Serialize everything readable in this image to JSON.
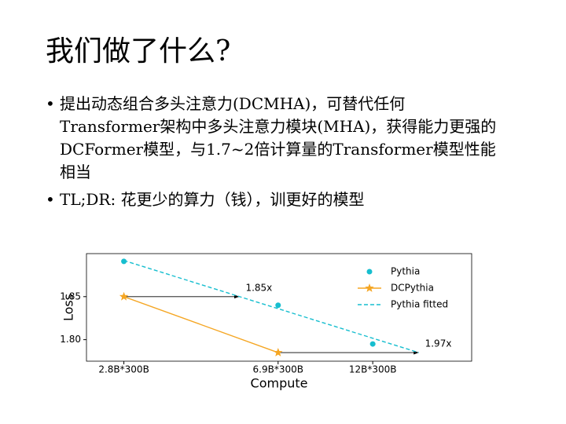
{
  "title": "我们做了什么?",
  "bullets": [
    "提出动态组合多头注意力(DCMHA)，可替代任何Transformer架构中多头注意力模块(MHA)，获得能力更强的DCFormer模型，与1.7~2倍计算量的Transformer模型性能相当",
    "TL;DR: 花更少的算力（钱），训更好的模型"
  ],
  "chart_data": {
    "type": "line",
    "x_label": "Compute",
    "y_label": "Loss",
    "xscale": "log",
    "xlim": [
      2.25,
      21.4
    ],
    "ylim": [
      1.775,
      1.9
    ],
    "xticks": [
      {
        "value": 2.8,
        "label": "2.8B*300B"
      },
      {
        "value": 6.9,
        "label": "6.9B*300B"
      },
      {
        "value": 12,
        "label": "12B*300B"
      }
    ],
    "yticks": [
      {
        "value": 1.8,
        "label": "1.80"
      },
      1.85
    ],
    "series": [
      {
        "name": "Pythia",
        "color": "#17becf",
        "marker": "circle",
        "linestyle": "none",
        "x": [
          2.8,
          6.9,
          12
        ],
        "values": [
          1.891,
          1.84,
          1.795
        ]
      },
      {
        "name": "DCPythia",
        "color": "#f5a623",
        "marker": "star",
        "linestyle": "solid",
        "x": [
          2.8,
          6.9
        ],
        "values": [
          1.85,
          1.785
        ]
      },
      {
        "name": "Pythia fitted",
        "color": "#17becf",
        "marker": "none",
        "linestyle": "dashed",
        "x": [
          2.8,
          15.7
        ],
        "values": [
          1.892,
          1.785
        ]
      }
    ],
    "annotations": [
      {
        "text": "1.85x",
        "x": [
          2.8,
          5.5
        ],
        "y": 1.85
      },
      {
        "text": "1.97x",
        "x": [
          6.9,
          15.7
        ],
        "y": 1.785
      }
    ],
    "legend": "upper right"
  }
}
